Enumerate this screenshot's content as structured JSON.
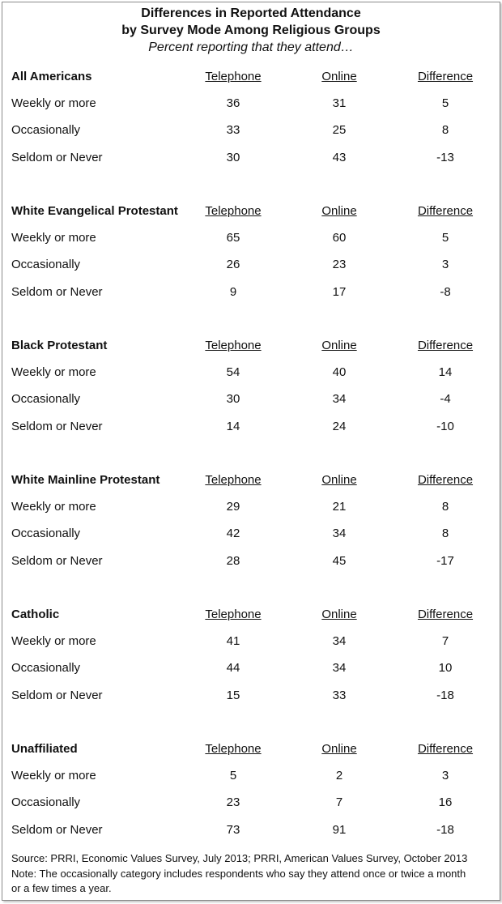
{
  "title": [
    "Differences in Reported Attendance",
    "by Survey Mode Among Religious Groups"
  ],
  "subtitle": "Percent reporting that they attend…",
  "columns": [
    "Telephone",
    "Online",
    "Difference"
  ],
  "groups": [
    {
      "name": "All Americans",
      "rows": [
        {
          "label": "Weekly or more",
          "values": [
            "36",
            "31",
            "5"
          ]
        },
        {
          "label": "Occasionally",
          "values": [
            "33",
            "25",
            "8"
          ]
        },
        {
          "label": "Seldom or Never",
          "values": [
            "30",
            "43",
            "-13"
          ]
        }
      ]
    },
    {
      "name": "White Evangelical Protestant",
      "rows": [
        {
          "label": "Weekly or more",
          "values": [
            "65",
            "60",
            "5"
          ]
        },
        {
          "label": "Occasionally",
          "values": [
            "26",
            "23",
            "3"
          ]
        },
        {
          "label": "Seldom or Never",
          "values": [
            "9",
            "17",
            "-8"
          ]
        }
      ]
    },
    {
      "name": "Black Protestant",
      "rows": [
        {
          "label": "Weekly or more",
          "values": [
            "54",
            "40",
            "14"
          ]
        },
        {
          "label": "Occasionally",
          "values": [
            "30",
            "34",
            "-4"
          ]
        },
        {
          "label": "Seldom or Never",
          "values": [
            "14",
            "24",
            "-10"
          ]
        }
      ]
    },
    {
      "name": "White Mainline Protestant",
      "rows": [
        {
          "label": "Weekly or more",
          "values": [
            "29",
            "21",
            "8"
          ]
        },
        {
          "label": "Occasionally",
          "values": [
            "42",
            "34",
            "8"
          ]
        },
        {
          "label": "Seldom or Never",
          "values": [
            "28",
            "45",
            "-17"
          ]
        }
      ]
    },
    {
      "name": "Catholic",
      "rows": [
        {
          "label": "Weekly or more",
          "values": [
            "41",
            "34",
            "7"
          ]
        },
        {
          "label": "Occasionally",
          "values": [
            "44",
            "34",
            "10"
          ]
        },
        {
          "label": "Seldom or Never",
          "values": [
            "15",
            "33",
            "-18"
          ]
        }
      ]
    },
    {
      "name": "Unaffiliated",
      "rows": [
        {
          "label": "Weekly or more",
          "values": [
            "5",
            "2",
            "3"
          ]
        },
        {
          "label": "Occasionally",
          "values": [
            "23",
            "7",
            "16"
          ]
        },
        {
          "label": "Seldom or Never",
          "values": [
            "73",
            "91",
            "-18"
          ]
        }
      ]
    }
  ],
  "source": "Source: PRRI, Economic Values Survey, July 2013; PRRI, American Values Survey, October 2013",
  "note": [
    "Note: The occasionally category includes respondents who say they attend once or twice a month",
    "or a few times a year."
  ],
  "chart_data": {
    "type": "table",
    "title": "Differences in Reported Attendance by Survey Mode Among Religious Groups",
    "subtitle": "Percent reporting that they attend…",
    "columns": [
      "Telephone",
      "Online",
      "Difference"
    ],
    "row_labels": [
      "Weekly or more",
      "Occasionally",
      "Seldom or Never"
    ],
    "groups": [
      {
        "name": "All Americans",
        "telephone": [
          36,
          33,
          30
        ],
        "online": [
          31,
          25,
          43
        ],
        "difference": [
          5,
          8,
          -13
        ]
      },
      {
        "name": "White Evangelical Protestant",
        "telephone": [
          65,
          26,
          9
        ],
        "online": [
          60,
          23,
          17
        ],
        "difference": [
          5,
          3,
          -8
        ]
      },
      {
        "name": "Black Protestant",
        "telephone": [
          54,
          30,
          14
        ],
        "online": [
          40,
          34,
          24
        ],
        "difference": [
          14,
          -4,
          -10
        ]
      },
      {
        "name": "White Mainline Protestant",
        "telephone": [
          29,
          42,
          28
        ],
        "online": [
          21,
          34,
          45
        ],
        "difference": [
          8,
          8,
          -17
        ]
      },
      {
        "name": "Catholic",
        "telephone": [
          41,
          44,
          15
        ],
        "online": [
          34,
          34,
          33
        ],
        "difference": [
          7,
          10,
          -18
        ]
      },
      {
        "name": "Unaffiliated",
        "telephone": [
          5,
          23,
          73
        ],
        "online": [
          2,
          7,
          91
        ],
        "difference": [
          3,
          16,
          -18
        ]
      }
    ]
  }
}
